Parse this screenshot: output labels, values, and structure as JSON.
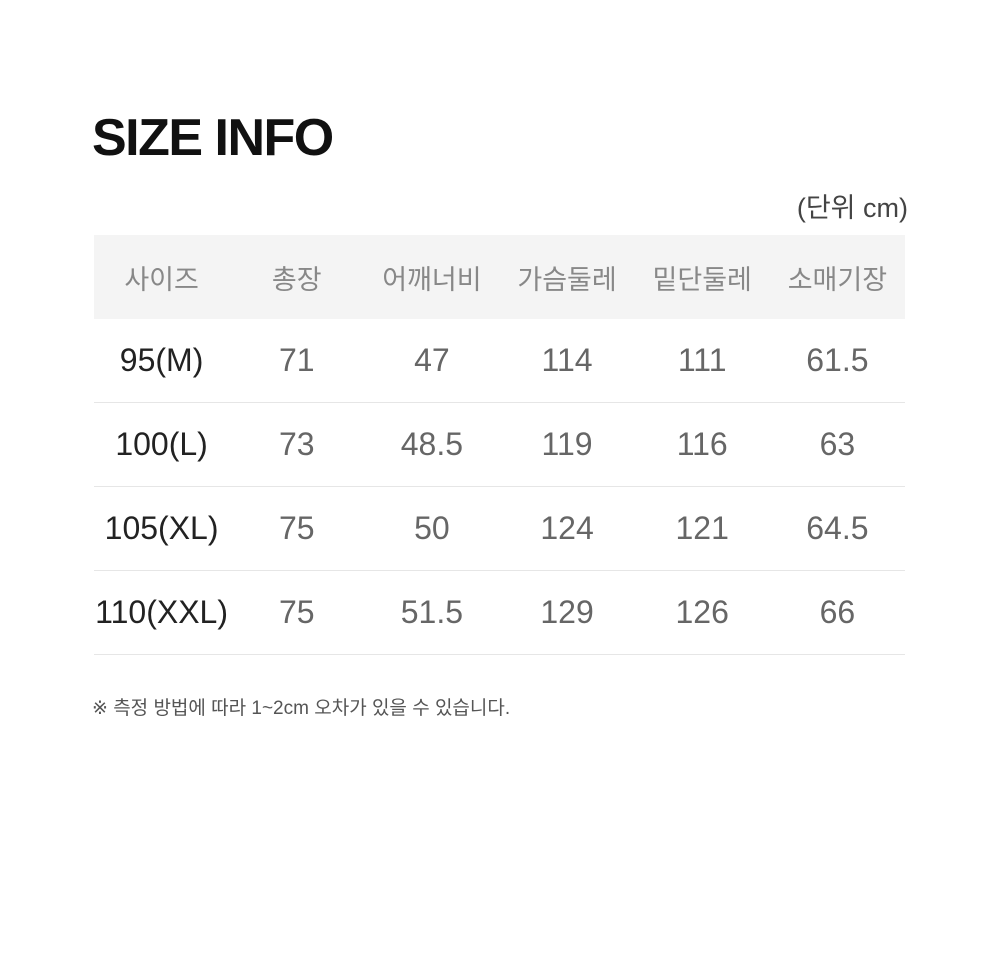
{
  "title": "SIZE INFO",
  "unit_label": "(단위 cm)",
  "table": {
    "headers": [
      "사이즈",
      "총장",
      "어깨너비",
      "가슴둘레",
      "밑단둘레",
      "소매기장"
    ],
    "rows": [
      [
        "95(M)",
        "71",
        "47",
        "114",
        "111",
        "61.5"
      ],
      [
        "100(L)",
        "73",
        "48.5",
        "119",
        "116",
        "63"
      ],
      [
        "105(XL)",
        "75",
        "50",
        "124",
        "121",
        "64.5"
      ],
      [
        "110(XXL)",
        "75",
        "51.5",
        "129",
        "126",
        "66"
      ]
    ]
  },
  "note": "※ 측정 방법에 따라 1~2cm 오차가 있을 수 있습니다."
}
